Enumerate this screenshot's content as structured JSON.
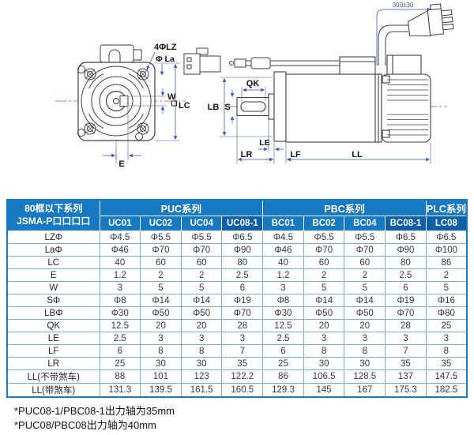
{
  "diagram": {
    "front": {
      "bolt_label": "4ΦLZ",
      "flange_label": "Φ La",
      "w": "W",
      "lc": "LC",
      "e": "E"
    },
    "side": {
      "qk": "QK",
      "lb": "LB",
      "s": "S",
      "le": "LE",
      "lr": "LR",
      "lf": "LF",
      "ll": "LL",
      "cable_dim": "300±30"
    }
  },
  "table": {
    "corner": {
      "line1": "80框以下系列",
      "line2": "JSMA-P口口口口"
    },
    "groups": [
      {
        "label": "PUC系列",
        "span": 4
      },
      {
        "label": "PBC系列",
        "span": 4
      },
      {
        "label": "PLC系列",
        "span": 1
      }
    ],
    "models": [
      "UC01",
      "UC02",
      "UC04",
      "UC08-1",
      "BC01",
      "BC02",
      "BC04",
      "BC08-1",
      "LC08"
    ],
    "highlight_columns": [
      3,
      7,
      8
    ],
    "rows": [
      {
        "label": "LZΦ",
        "values": [
          "Φ4.5",
          "Φ5.5",
          "Φ5.5",
          "Φ6.5",
          "Φ4.5",
          "Φ5.5",
          "Φ5.5",
          "Φ6.5",
          "Φ6.5"
        ]
      },
      {
        "label": "LaΦ",
        "values": [
          "Φ46",
          "Φ70",
          "Φ70",
          "Φ90",
          "Φ46",
          "Φ70",
          "Φ70",
          "Φ90",
          "Φ100"
        ]
      },
      {
        "label": "LC",
        "values": [
          "40",
          "60",
          "60",
          "80",
          "40",
          "60",
          "60",
          "80",
          "86"
        ]
      },
      {
        "label": "E",
        "values": [
          "1.2",
          "2",
          "2",
          "2.5",
          "1.2",
          "2",
          "2",
          "2.5",
          "2"
        ]
      },
      {
        "label": "W",
        "values": [
          "3",
          "5",
          "5",
          "6",
          "3",
          "5",
          "5",
          "6",
          "5"
        ]
      },
      {
        "label": "SΦ",
        "values": [
          "Φ8",
          "Φ14",
          "Φ14",
          "Φ19",
          "Φ8",
          "Φ14",
          "Φ14",
          "Φ19",
          "Φ16"
        ]
      },
      {
        "label": "LBΦ",
        "values": [
          "Φ30",
          "Φ50",
          "Φ50",
          "Φ70",
          "Φ30",
          "Φ50",
          "Φ50",
          "Φ70",
          "Φ80"
        ]
      },
      {
        "label": "QK",
        "values": [
          "12.5",
          "20",
          "20",
          "28",
          "12.5",
          "20",
          "20",
          "28",
          "25"
        ]
      },
      {
        "label": "LE",
        "values": [
          "2.5",
          "3",
          "3",
          "3",
          "2.5",
          "3",
          "3",
          "3",
          "3"
        ]
      },
      {
        "label": "LF",
        "values": [
          "6",
          "8",
          "8",
          "7",
          "6",
          "8",
          "8",
          "7",
          "8"
        ]
      },
      {
        "label": "LR",
        "values": [
          "25",
          "30",
          "30",
          "35",
          "25",
          "30",
          "30",
          "35",
          "35"
        ]
      },
      {
        "label": "LL(不带煞车)",
        "values": [
          "88",
          "101",
          "123",
          "122.2",
          "86",
          "106.5",
          "128.5",
          "137",
          "147.5"
        ]
      },
      {
        "label": "LL(带煞车)",
        "values": [
          "131.3",
          "139.5",
          "161.5",
          "160.5",
          "129.3",
          "145",
          "167",
          "175.3",
          "182.5"
        ]
      }
    ]
  },
  "footnotes": [
    "*PUC08-1/PBC08-1出力轴为35mm",
    "*PUC08/PBC08出力轴为40mm"
  ],
  "colors": {
    "header_blue": "#1779c4",
    "header_blue_dark": "#0d5fa8",
    "grid_line": "#7fb0da",
    "dimension_blue": "#4056b8",
    "centerline_red": "#d05050"
  }
}
